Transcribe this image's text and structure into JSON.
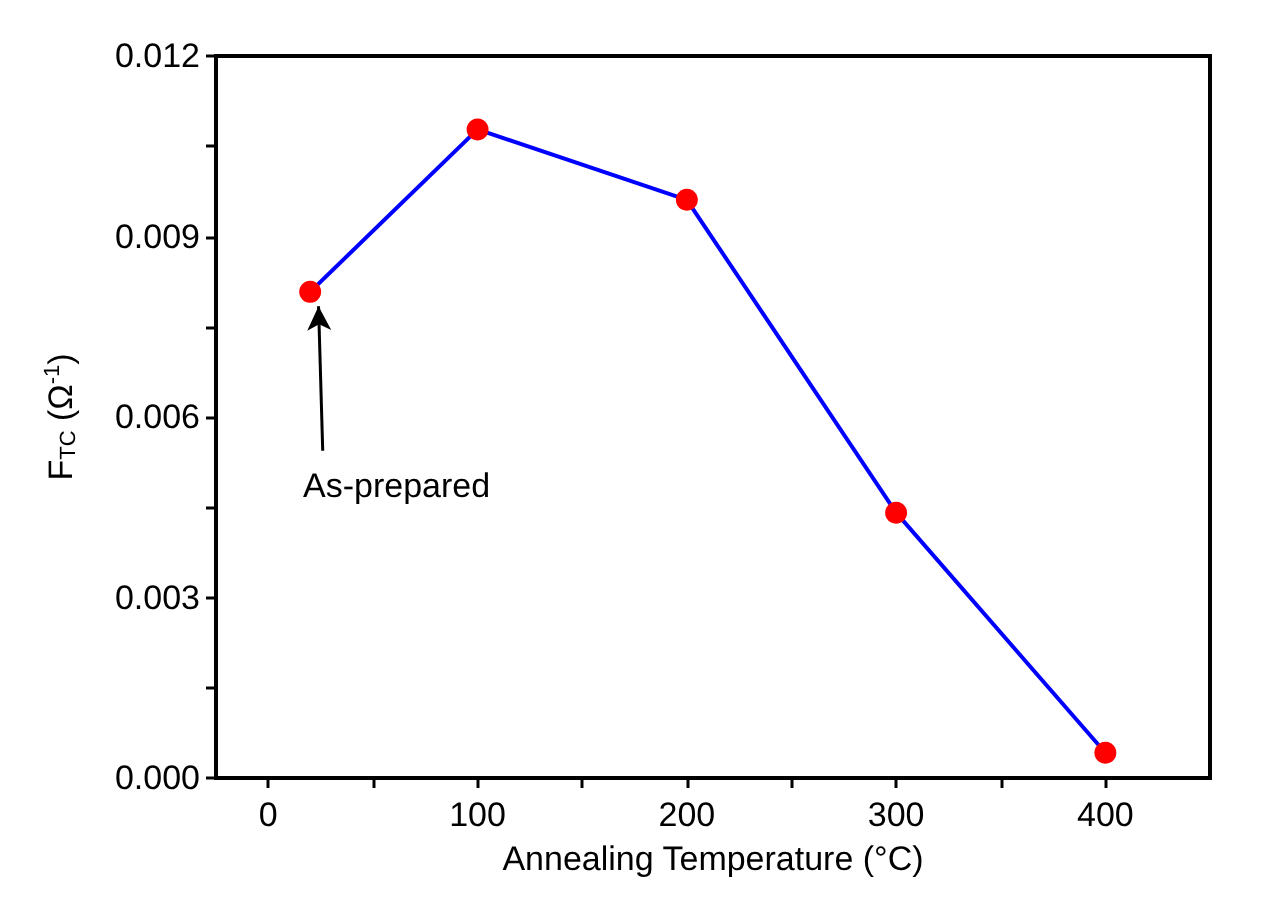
{
  "chart_data": {
    "type": "line",
    "xlabel": "Annealing Temperature (°C)",
    "ylabel": "F$_{TC}$ (Ω$^{-1}$)",
    "x": [
      20,
      100,
      200,
      300,
      400
    ],
    "series": [
      {
        "color": "#0000ff",
        "colors": [
          "#ff0000",
          "#ff0000",
          "#ff0000",
          "#ff0000",
          "#ff0000"
        ],
        "values": [
          0.00808,
          0.01078,
          0.00961,
          0.00441,
          0.00042
        ]
      }
    ],
    "xlim": [
      -25,
      450
    ],
    "xticks": [
      0,
      {
        "value": 50,
        "label": null
      },
      100,
      {
        "value": 150,
        "label": null
      },
      200,
      {
        "value": 250,
        "label": null
      },
      300,
      {
        "value": 350,
        "label": null
      },
      400
    ],
    "ylim": [
      0,
      0.012
    ],
    "yticks": [
      "0.000",
      {
        "value": 0.0015,
        "label": null
      },
      {
        "value": 0.003,
        "label": "0.003"
      },
      {
        "value": 0.0045,
        "label": null
      },
      {
        "value": 0.006,
        "label": "0.006"
      },
      {
        "value": 0.0075,
        "label": null
      },
      {
        "value": 0.009,
        "label": "0.009"
      },
      {
        "value": 0.0105,
        "label": null
      },
      {
        "value": 0.012,
        "label": "0.012"
      }
    ],
    "annotations": [
      {
        "text": "As-prepared",
        "x": 20,
        "y": 0.00808
      }
    ],
    "grid": false,
    "marker": "circle",
    "line_style": "solid"
  }
}
